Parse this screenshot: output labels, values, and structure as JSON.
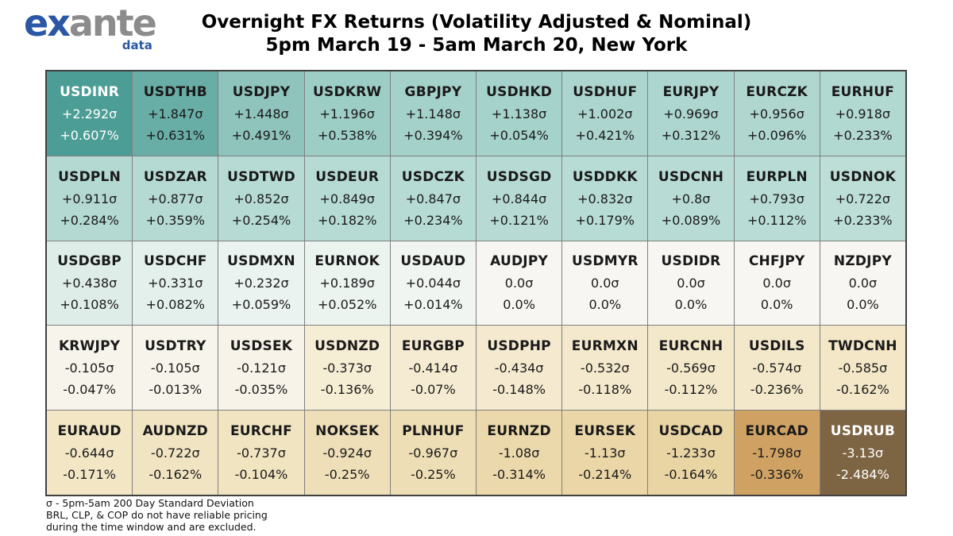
{
  "header": {
    "logo": {
      "ex": "ex",
      "ante": "ante",
      "data": "data"
    },
    "title_line1": "Overnight FX Returns (Volatility Adjusted & Nominal)",
    "title_line2": "5pm March 19 - 5am March 20, New York"
  },
  "chart_data": {
    "type": "heatmap",
    "title": "Overnight FX Returns (Volatility Adjusted & Nominal)",
    "subtitle": "5pm March 19 - 5am March 20, New York",
    "unit_primary": "sigma (200-day 5pm-5am standard deviations)",
    "unit_secondary": "percent return",
    "columns": 10,
    "rows": 5,
    "cells": [
      {
        "pair": "USDINR",
        "sigma": "+2.292σ",
        "pct": "+0.607%",
        "sigma_value": 2.292,
        "pct_value": 0.607,
        "bg": "#4C9D96",
        "fg": "#FFFFFF"
      },
      {
        "pair": "USDTHB",
        "sigma": "+1.847σ",
        "pct": "+0.631%",
        "sigma_value": 1.847,
        "pct_value": 0.631,
        "bg": "#68ADA6",
        "fg": "#1A1A1A"
      },
      {
        "pair": "USDJPY",
        "sigma": "+1.448σ",
        "pct": "+0.491%",
        "sigma_value": 1.448,
        "pct_value": 0.491,
        "bg": "#8FC4BC",
        "fg": "#1A1A1A"
      },
      {
        "pair": "USDKRW",
        "sigma": "+1.196σ",
        "pct": "+0.538%",
        "sigma_value": 1.196,
        "pct_value": 0.538,
        "bg": "#9DCEC6",
        "fg": "#1A1A1A"
      },
      {
        "pair": "GBPJPY",
        "sigma": "+1.148σ",
        "pct": "+0.394%",
        "sigma_value": 1.148,
        "pct_value": 0.394,
        "bg": "#A4D1CA",
        "fg": "#1A1A1A"
      },
      {
        "pair": "USDHKD",
        "sigma": "+1.138σ",
        "pct": "+0.054%",
        "sigma_value": 1.138,
        "pct_value": 0.054,
        "bg": "#A5D2CB",
        "fg": "#1A1A1A"
      },
      {
        "pair": "USDHUF",
        "sigma": "+1.002σ",
        "pct": "+0.421%",
        "sigma_value": 1.002,
        "pct_value": 0.421,
        "bg": "#ABD5CE",
        "fg": "#1A1A1A"
      },
      {
        "pair": "EURJPY",
        "sigma": "+0.969σ",
        "pct": "+0.312%",
        "sigma_value": 0.969,
        "pct_value": 0.312,
        "bg": "#AED6D0",
        "fg": "#1A1A1A"
      },
      {
        "pair": "EURCZK",
        "sigma": "+0.956σ",
        "pct": "+0.096%",
        "sigma_value": 0.956,
        "pct_value": 0.096,
        "bg": "#AFD7D0",
        "fg": "#1A1A1A"
      },
      {
        "pair": "EURHUF",
        "sigma": "+0.918σ",
        "pct": "+0.233%",
        "sigma_value": 0.918,
        "pct_value": 0.233,
        "bg": "#B1D8D1",
        "fg": "#1A1A1A"
      },
      {
        "pair": "USDPLN",
        "sigma": "+0.911σ",
        "pct": "+0.284%",
        "sigma_value": 0.911,
        "pct_value": 0.284,
        "bg": "#B3D9D2",
        "fg": "#1A1A1A"
      },
      {
        "pair": "USDZAR",
        "sigma": "+0.877σ",
        "pct": "+0.359%",
        "sigma_value": 0.877,
        "pct_value": 0.359,
        "bg": "#B5DAD3",
        "fg": "#1A1A1A"
      },
      {
        "pair": "USDTWD",
        "sigma": "+0.852σ",
        "pct": "+0.254%",
        "sigma_value": 0.852,
        "pct_value": 0.254,
        "bg": "#B6DBD4",
        "fg": "#1A1A1A"
      },
      {
        "pair": "USDEUR",
        "sigma": "+0.849σ",
        "pct": "+0.182%",
        "sigma_value": 0.849,
        "pct_value": 0.182,
        "bg": "#B6DBD4",
        "fg": "#1A1A1A"
      },
      {
        "pair": "USDCZK",
        "sigma": "+0.847σ",
        "pct": "+0.234%",
        "sigma_value": 0.847,
        "pct_value": 0.234,
        "bg": "#B6DBD4",
        "fg": "#1A1A1A"
      },
      {
        "pair": "USDSGD",
        "sigma": "+0.844σ",
        "pct": "+0.121%",
        "sigma_value": 0.844,
        "pct_value": 0.121,
        "bg": "#B7DBD4",
        "fg": "#1A1A1A"
      },
      {
        "pair": "USDDKK",
        "sigma": "+0.832σ",
        "pct": "+0.179%",
        "sigma_value": 0.832,
        "pct_value": 0.179,
        "bg": "#B7DCD5",
        "fg": "#1A1A1A"
      },
      {
        "pair": "USDCNH",
        "sigma": "+0.8σ",
        "pct": "+0.089%",
        "sigma_value": 0.8,
        "pct_value": 0.089,
        "bg": "#B8DCD5",
        "fg": "#1A1A1A"
      },
      {
        "pair": "EURPLN",
        "sigma": "+0.793σ",
        "pct": "+0.112%",
        "sigma_value": 0.793,
        "pct_value": 0.112,
        "bg": "#B9DDD6",
        "fg": "#1A1A1A"
      },
      {
        "pair": "USDNOK",
        "sigma": "+0.722σ",
        "pct": "+0.233%",
        "sigma_value": 0.722,
        "pct_value": 0.233,
        "bg": "#BCDED7",
        "fg": "#1A1A1A"
      },
      {
        "pair": "USDGBP",
        "sigma": "+0.438σ",
        "pct": "+0.108%",
        "sigma_value": 0.438,
        "pct_value": 0.108,
        "bg": "#DFEDE9",
        "fg": "#1A1A1A"
      },
      {
        "pair": "USDCHF",
        "sigma": "+0.331σ",
        "pct": "+0.082%",
        "sigma_value": 0.331,
        "pct_value": 0.082,
        "bg": "#E4F0EC",
        "fg": "#1A1A1A"
      },
      {
        "pair": "USDMXN",
        "sigma": "+0.232σ",
        "pct": "+0.059%",
        "sigma_value": 0.232,
        "pct_value": 0.059,
        "bg": "#EAF3EF",
        "fg": "#1A1A1A"
      },
      {
        "pair": "EURNOK",
        "sigma": "+0.189σ",
        "pct": "+0.052%",
        "sigma_value": 0.189,
        "pct_value": 0.052,
        "bg": "#ECF4F0",
        "fg": "#1A1A1A"
      },
      {
        "pair": "USDAUD",
        "sigma": "+0.044σ",
        "pct": "+0.014%",
        "sigma_value": 0.044,
        "pct_value": 0.014,
        "bg": "#F1F5F1",
        "fg": "#1A1A1A"
      },
      {
        "pair": "AUDJPY",
        "sigma": "0.0σ",
        "pct": "0.0%",
        "sigma_value": 0.0,
        "pct_value": 0.0,
        "bg": "#F7F6F2",
        "fg": "#1A1A1A"
      },
      {
        "pair": "USDMYR",
        "sigma": "0.0σ",
        "pct": "0.0%",
        "sigma_value": 0.0,
        "pct_value": 0.0,
        "bg": "#F7F6F2",
        "fg": "#1A1A1A"
      },
      {
        "pair": "USDIDR",
        "sigma": "0.0σ",
        "pct": "0.0%",
        "sigma_value": 0.0,
        "pct_value": 0.0,
        "bg": "#F7F6F2",
        "fg": "#1A1A1A"
      },
      {
        "pair": "CHFJPY",
        "sigma": "0.0σ",
        "pct": "0.0%",
        "sigma_value": 0.0,
        "pct_value": 0.0,
        "bg": "#F7F6F2",
        "fg": "#1A1A1A"
      },
      {
        "pair": "NZDJPY",
        "sigma": "0.0σ",
        "pct": "0.0%",
        "sigma_value": 0.0,
        "pct_value": 0.0,
        "bg": "#F7F6F2",
        "fg": "#1A1A1A"
      },
      {
        "pair": "KRWJPY",
        "sigma": "-0.105σ",
        "pct": "-0.047%",
        "sigma_value": -0.105,
        "pct_value": -0.047,
        "bg": "#F7F4EB",
        "fg": "#1A1A1A"
      },
      {
        "pair": "USDTRY",
        "sigma": "-0.105σ",
        "pct": "-0.013%",
        "sigma_value": -0.105,
        "pct_value": -0.013,
        "bg": "#F7F4EB",
        "fg": "#1A1A1A"
      },
      {
        "pair": "USDSEK",
        "sigma": "-0.121σ",
        "pct": "-0.035%",
        "sigma_value": -0.121,
        "pct_value": -0.035,
        "bg": "#F7F3E9",
        "fg": "#1A1A1A"
      },
      {
        "pair": "USDNZD",
        "sigma": "-0.373σ",
        "pct": "-0.136%",
        "sigma_value": -0.373,
        "pct_value": -0.136,
        "bg": "#F6EDD5",
        "fg": "#1A1A1A"
      },
      {
        "pair": "EURGBP",
        "sigma": "-0.414σ",
        "pct": "-0.07%",
        "sigma_value": -0.414,
        "pct_value": -0.07,
        "bg": "#F5EBD2",
        "fg": "#1A1A1A"
      },
      {
        "pair": "USDPHP",
        "sigma": "-0.434σ",
        "pct": "-0.148%",
        "sigma_value": -0.434,
        "pct_value": -0.148,
        "bg": "#F5EACF",
        "fg": "#1A1A1A"
      },
      {
        "pair": "EURMXN",
        "sigma": "-0.532σ",
        "pct": "-0.118%",
        "sigma_value": -0.532,
        "pct_value": -0.118,
        "bg": "#F4E9CC",
        "fg": "#1A1A1A"
      },
      {
        "pair": "EURCNH",
        "sigma": "-0.569σ",
        "pct": "-0.112%",
        "sigma_value": -0.569,
        "pct_value": -0.112,
        "bg": "#F3E8CA",
        "fg": "#1A1A1A"
      },
      {
        "pair": "USDILS",
        "sigma": "-0.574σ",
        "pct": "-0.236%",
        "sigma_value": -0.574,
        "pct_value": -0.236,
        "bg": "#F3E8C9",
        "fg": "#1A1A1A"
      },
      {
        "pair": "TWDCNH",
        "sigma": "-0.585σ",
        "pct": "-0.162%",
        "sigma_value": -0.585,
        "pct_value": -0.162,
        "bg": "#F3E7C8",
        "fg": "#1A1A1A"
      },
      {
        "pair": "EURAUD",
        "sigma": "-0.644σ",
        "pct": "-0.171%",
        "sigma_value": -0.644,
        "pct_value": -0.171,
        "bg": "#F2E6C5",
        "fg": "#1A1A1A"
      },
      {
        "pair": "AUDNZD",
        "sigma": "-0.722σ",
        "pct": "-0.162%",
        "sigma_value": -0.722,
        "pct_value": -0.162,
        "bg": "#F1E4C2",
        "fg": "#1A1A1A"
      },
      {
        "pair": "EURCHF",
        "sigma": "-0.737σ",
        "pct": "-0.104%",
        "sigma_value": -0.737,
        "pct_value": -0.104,
        "bg": "#F1E4C1",
        "fg": "#1A1A1A"
      },
      {
        "pair": "NOKSEK",
        "sigma": "-0.924σ",
        "pct": "-0.25%",
        "sigma_value": -0.924,
        "pct_value": -0.25,
        "bg": "#EFDFB8",
        "fg": "#1A1A1A"
      },
      {
        "pair": "PLNHUF",
        "sigma": "-0.967σ",
        "pct": "-0.25%",
        "sigma_value": -0.967,
        "pct_value": -0.25,
        "bg": "#EEDEB5",
        "fg": "#1A1A1A"
      },
      {
        "pair": "EURNZD",
        "sigma": "-1.08σ",
        "pct": "-0.314%",
        "sigma_value": -1.08,
        "pct_value": -0.314,
        "bg": "#EBD8AB",
        "fg": "#1A1A1A"
      },
      {
        "pair": "EURSEK",
        "sigma": "-1.13σ",
        "pct": "-0.214%",
        "sigma_value": -1.13,
        "pct_value": -0.214,
        "bg": "#EAD6A7",
        "fg": "#1A1A1A"
      },
      {
        "pair": "USDCAD",
        "sigma": "-1.233σ",
        "pct": "-0.164%",
        "sigma_value": -1.233,
        "pct_value": -0.164,
        "bg": "#E9D5A4",
        "fg": "#1A1A1A"
      },
      {
        "pair": "EURCAD",
        "sigma": "-1.798σ",
        "pct": "-0.336%",
        "sigma_value": -1.798,
        "pct_value": -0.336,
        "bg": "#CFA263",
        "fg": "#1A1A1A"
      },
      {
        "pair": "USDRUB",
        "sigma": "-3.13σ",
        "pct": "-2.484%",
        "sigma_value": -3.13,
        "pct_value": -2.484,
        "bg": "#7D6443",
        "fg": "#FFFFFF"
      }
    ]
  },
  "footnote": {
    "line1": "σ - 5pm-5am 200 Day Standard Deviation",
    "line2": "BRL, CLP, & COP do not have reliable pricing",
    "line3": "during the time window and are excluded."
  }
}
